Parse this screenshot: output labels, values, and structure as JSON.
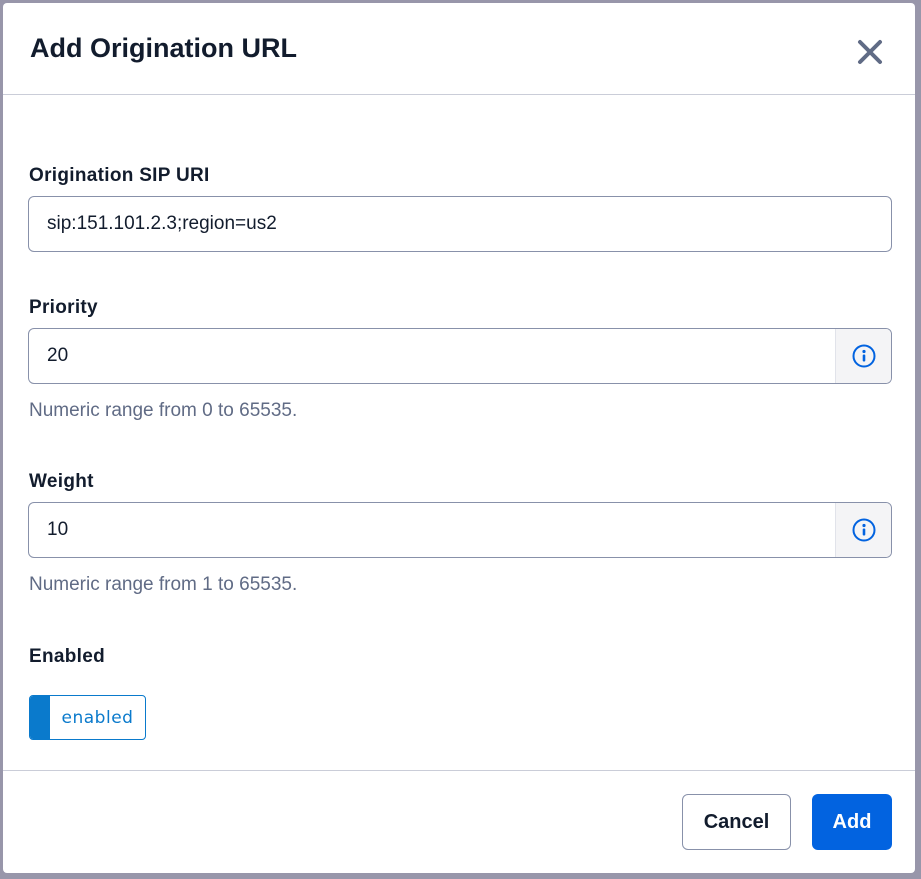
{
  "dialog": {
    "title": "Add Origination URL",
    "close_icon": "close-icon"
  },
  "fields": {
    "sip_uri": {
      "label": "Origination SIP URI",
      "value": "sip:151.101.2.3;region=us2"
    },
    "priority": {
      "label": "Priority",
      "value": "20",
      "help": "Numeric range from 0 to 65535.",
      "icon": "info-icon"
    },
    "weight": {
      "label": "Weight",
      "value": "10",
      "help": "Numeric range from 1 to 65535.",
      "icon": "info-icon"
    },
    "enabled": {
      "label": "Enabled",
      "toggle_text": "enabled",
      "state": true
    }
  },
  "footer": {
    "cancel_label": "Cancel",
    "add_label": "Add"
  },
  "colors": {
    "primary": "#0263e0",
    "toggle": "#0a7acc",
    "text": "#121c2d",
    "help": "#606b85"
  }
}
